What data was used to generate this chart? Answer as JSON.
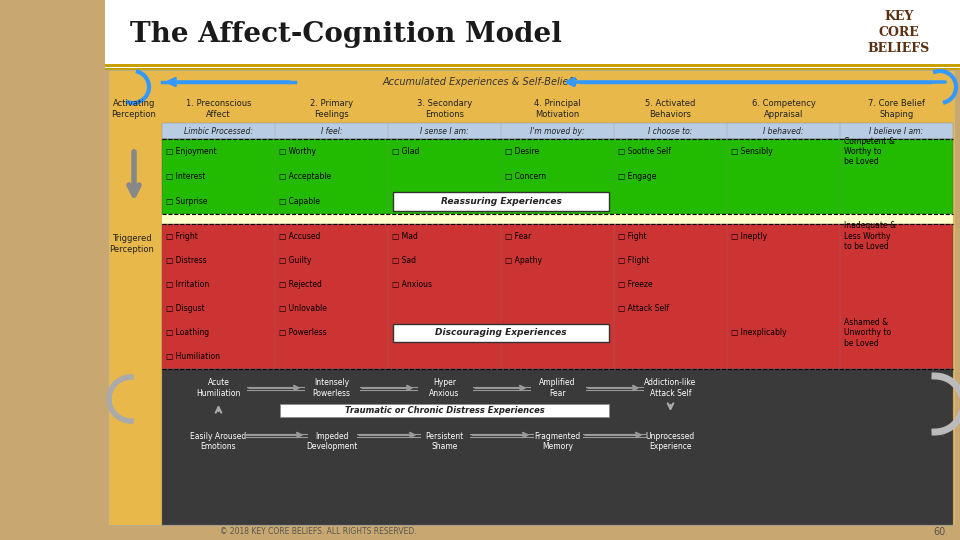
{
  "title": "The Affect-Cognition Model",
  "bg_wood": "#c8a870",
  "bg_inner": "#e8b84b",
  "bg_white_title": "#ffffff",
  "header_bg": "#b8cce4",
  "green_bg": "#22bb00",
  "red_bg": "#cc3333",
  "dark_bg": "#3a3a3a",
  "yellow_strip": "#ffffcc",
  "columns": [
    "1. Preconscious\nAffect",
    "2. Primary\nFeelings",
    "3. Secondary\nEmotions",
    "4. Principal\nMotivation",
    "5. Activated\nBehaviors",
    "6. Competency\nAppraisal",
    "7. Core Belief\nShaping"
  ],
  "header_labels": [
    "Limbic Processed:",
    "I feel:",
    "I sense I am:",
    "I'm moved by:",
    "I choose to:",
    "I behaved:",
    "I believe I am:"
  ],
  "green_rows": [
    [
      "Enjoyment",
      "Worthy",
      "Glad",
      "Desire",
      "Soothe Self",
      "Sensibly",
      "Competent &\nWorthy to\nbe Loved"
    ],
    [
      "Interest",
      "Acceptable",
      "",
      "Concern",
      "Engage",
      "",
      ""
    ],
    [
      "Surprise",
      "Capable",
      "",
      "",
      "",
      "",
      ""
    ]
  ],
  "reassuring_label": "Reassuring Experiences",
  "red_rows": [
    [
      "Fright",
      "Accused",
      "Mad",
      "Fear",
      "Fight",
      "Ineptly",
      "Inadequate &\nLess Worthy\nto be Loved"
    ],
    [
      "Distress",
      "Guilty",
      "Sad",
      "Apathy",
      "Flight",
      "",
      ""
    ],
    [
      "Irritation",
      "Rejected",
      "Anxious",
      "",
      "Freeze",
      "",
      ""
    ],
    [
      "Disgust",
      "Unlovable",
      "",
      "",
      "Attack Self",
      "",
      ""
    ],
    [
      "Loathing",
      "Powerless",
      "",
      "",
      "",
      "Inexplicably",
      "Ashamed &\nUnworthy to\nbe Loved"
    ],
    [
      "Humiliation",
      "",
      "",
      "",
      "",
      "",
      ""
    ]
  ],
  "discouraging_label": "Discouraging Experiences",
  "bottom_top_labels": [
    "Acute\nHumiliation",
    "Intensely\nPowerless",
    "Hyper\nAnxious",
    "Amplified\nFear",
    "Addiction-like\nAttack Self"
  ],
  "bottom_mid_label": "Traumatic or Chronic Distress Experiences",
  "bottom_bot_labels": [
    "Easily Aroused\nEmotions",
    "Impeded\nDevelopment",
    "Persistent\nShame",
    "Fragmented\nMemory",
    "Unprocessed\nExperience"
  ],
  "accumulated_label": "Accumulated Experiences & Self-Beliefs",
  "activating_label": "Activating\nPerception",
  "triggered_label": "Triggered\nPerception",
  "copyright": "© 2018 KEY CORE BELIEFS. ALL RIGHTS RESERVED.",
  "page_num": "60",
  "kcb_text": "KEY\nCORE\nBELIEFS"
}
